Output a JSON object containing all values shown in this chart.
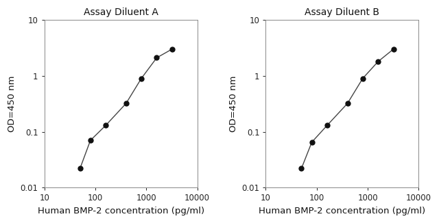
{
  "panel_A": {
    "title": "Assay Diluent A",
    "x": [
      50,
      80,
      160,
      400,
      800,
      1600,
      3200
    ],
    "y": [
      0.022,
      0.07,
      0.13,
      0.32,
      0.9,
      2.1,
      3.0
    ]
  },
  "panel_B": {
    "title": "Assay Diluent B",
    "x": [
      50,
      80,
      160,
      400,
      800,
      1600,
      3200
    ],
    "y": [
      0.022,
      0.065,
      0.13,
      0.32,
      0.9,
      1.8,
      3.0
    ]
  },
  "xlabel": "Human BMP-2 concentration (pg/ml)",
  "ylabel": "OD=450 nm",
  "xlim": [
    10,
    10000
  ],
  "ylim": [
    0.01,
    10
  ],
  "xticks": [
    10,
    100,
    1000,
    10000
  ],
  "xtick_labels": [
    "10",
    "100",
    "1000",
    "10000"
  ],
  "yticks": [
    0.01,
    0.1,
    1,
    10
  ],
  "ytick_labels": [
    "0.01",
    "0.1",
    "1",
    "10"
  ],
  "line_color": "#444444",
  "marker_color": "#111111",
  "title_color": "#111111",
  "label_color": "#111111",
  "tick_color": "#222222",
  "spine_color": "#888888",
  "title_fontsize": 10,
  "label_fontsize": 9.5,
  "tick_fontsize": 8.5,
  "marker_size": 5,
  "line_width": 1.0
}
